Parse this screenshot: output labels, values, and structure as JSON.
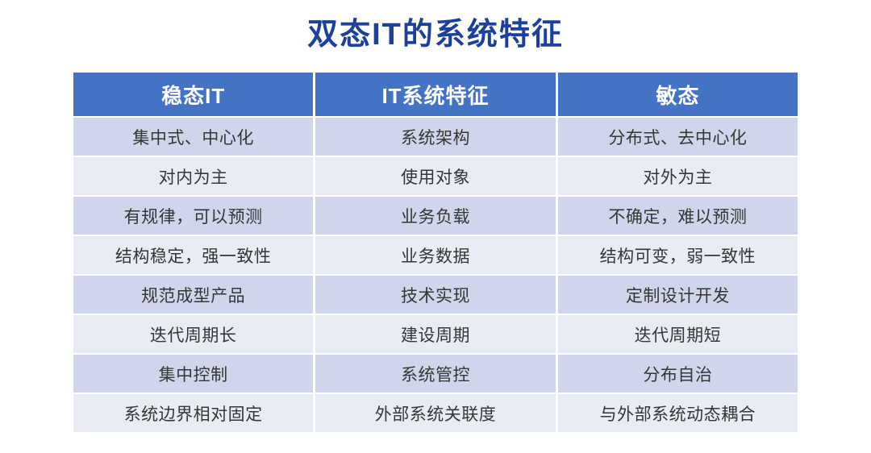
{
  "page": {
    "title": "双态IT的系统特征"
  },
  "colors": {
    "title_text": "#1c409b",
    "header_bg": "#4472c4",
    "header_text": "#ffffff",
    "row_odd_bg": "#cfd5ea",
    "row_even_bg": "#e9ebf5",
    "body_text": "#363636",
    "background": "#ffffff"
  },
  "table": {
    "headers": [
      "稳态IT",
      "IT系统特征",
      "敏态"
    ],
    "rows": [
      [
        "集中式、中心化",
        "系统架构",
        "分布式、去中心化"
      ],
      [
        "对内为主",
        "使用对象",
        "对外为主"
      ],
      [
        "有规律，可以预测",
        "业务负载",
        "不确定，难以预测"
      ],
      [
        "结构稳定，强一致性",
        "业务数据",
        "结构可变，弱一致性"
      ],
      [
        "规范成型产品",
        "技术实现",
        "定制设计开发"
      ],
      [
        "迭代周期长",
        "建设周期",
        "迭代周期短"
      ],
      [
        "集中控制",
        "系统管控",
        "分布自治"
      ],
      [
        "系统边界相对固定",
        "外部系统关联度",
        "与外部系统动态耦合"
      ]
    ]
  }
}
